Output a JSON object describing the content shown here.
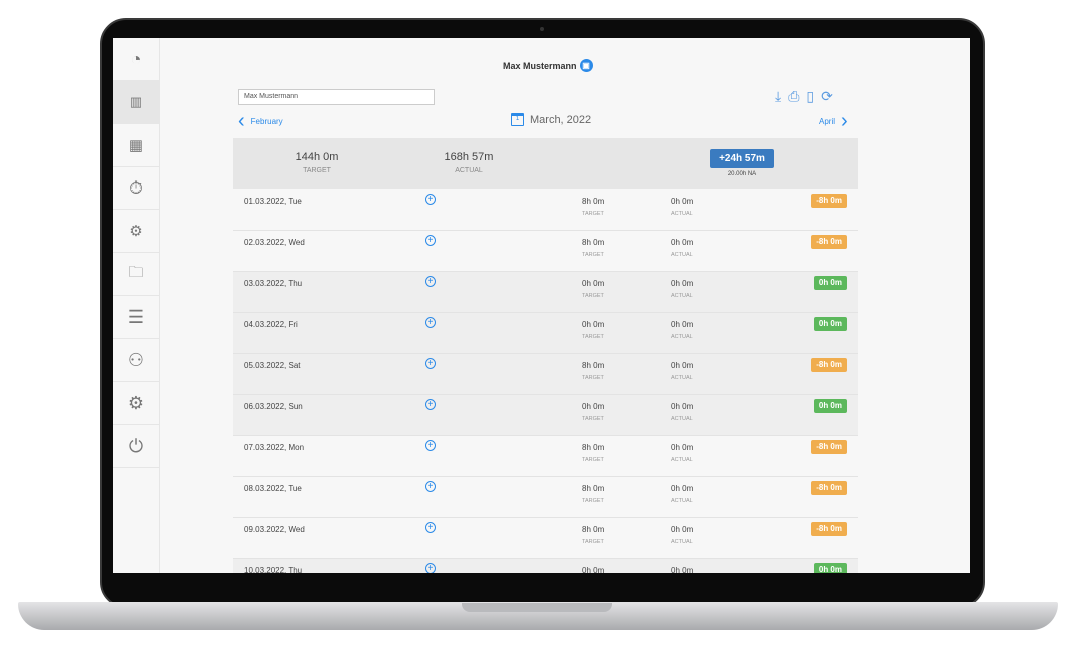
{
  "header": {
    "user": "Max Mustermann"
  },
  "employee_select": {
    "value": "Max Mustermann"
  },
  "toolbar": {
    "icons": [
      "download-icon",
      "print-icon",
      "export-icon",
      "refresh-icon"
    ]
  },
  "nav": {
    "prev": "February",
    "current": "March, 2022",
    "next": "April",
    "calendar_day": "1"
  },
  "summary": {
    "target": "144h 0m",
    "target_label": "TARGET",
    "actual": "168h 57m",
    "actual_label": "ACTUAL",
    "difference": "+24h 57m",
    "na": "20.00h NA"
  },
  "colors": {
    "accent": "#2b8ae8",
    "negative": "#f0ad4e",
    "positive": "#5cb85c",
    "difference": "#3a7bc0"
  },
  "labels": {
    "target": "TARGET",
    "actual": "ACTUAL"
  },
  "rows": [
    {
      "date": "01.03.2022, Tue",
      "target": "8h 0m",
      "actual": "0h 0m",
      "balance": "-8h 0m",
      "status": "negative"
    },
    {
      "date": "02.03.2022, Wed",
      "target": "8h 0m",
      "actual": "0h 0m",
      "balance": "-8h 0m",
      "status": "negative"
    },
    {
      "date": "03.03.2022, Thu",
      "target": "0h 0m",
      "actual": "0h 0m",
      "balance": "0h 0m",
      "status": "positive"
    },
    {
      "date": "04.03.2022, Fri",
      "target": "0h 0m",
      "actual": "0h 0m",
      "balance": "0h 0m",
      "status": "positive"
    },
    {
      "date": "05.03.2022, Sat",
      "target": "8h 0m",
      "actual": "0h 0m",
      "balance": "-8h 0m",
      "status": "negative"
    },
    {
      "date": "06.03.2022, Sun",
      "target": "0h 0m",
      "actual": "0h 0m",
      "balance": "0h 0m",
      "status": "positive"
    },
    {
      "date": "07.03.2022, Mon",
      "target": "8h 0m",
      "actual": "0h 0m",
      "balance": "-8h 0m",
      "status": "negative"
    },
    {
      "date": "08.03.2022, Tue",
      "target": "8h 0m",
      "actual": "0h 0m",
      "balance": "-8h 0m",
      "status": "negative"
    },
    {
      "date": "09.03.2022, Wed",
      "target": "8h 0m",
      "actual": "0h 0m",
      "balance": "-8h 0m",
      "status": "negative"
    },
    {
      "date": "10.03.2022, Thu",
      "target": "0h 0m",
      "actual": "0h 0m",
      "balance": "0h 0m",
      "status": "positive"
    }
  ],
  "sidebar": {
    "items": [
      "dashboard-icon",
      "reports-icon",
      "archive-icon",
      "stopwatch-icon",
      "team-settings-icon",
      "folder-settings-icon",
      "list-icon",
      "user-settings-icon",
      "settings-icon",
      "power-icon"
    ],
    "active": 1
  }
}
